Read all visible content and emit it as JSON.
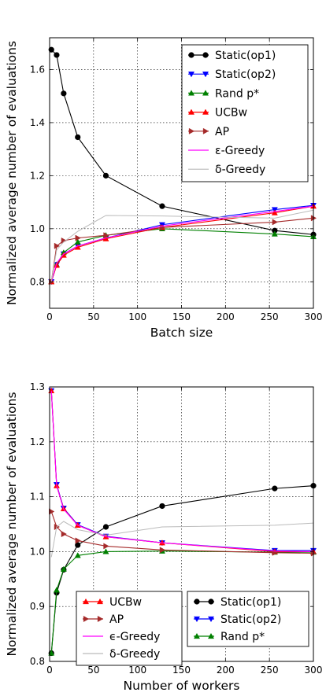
{
  "chart_data": [
    {
      "type": "line",
      "xlabel": "Batch size",
      "ylabel": "Normalized average number of evaluations",
      "xlim": [
        0,
        300
      ],
      "ylim": [
        0.7,
        1.72
      ],
      "xticks": [
        "0",
        "50",
        "100",
        "150",
        "200",
        "250",
        "300"
      ],
      "xtick_values": [
        0,
        50,
        100,
        150,
        200,
        250,
        300
      ],
      "yticks": [
        "0.8",
        "1.0",
        "1.2",
        "1.4",
        "1.6"
      ],
      "ytick_values": [
        0.8,
        1.0,
        1.2,
        1.4,
        1.6
      ],
      "grid": true,
      "legend": {
        "placement": "top-right",
        "columns": [
          [
            "Static(op1)",
            "Static(op2)",
            "Rand p*",
            "UCBw",
            "AP",
            "ε-Greedy",
            "δ-Greedy"
          ]
        ]
      },
      "series": [
        {
          "name": "Static(op1)",
          "color": "#000000",
          "marker": "circle",
          "x": [
            2,
            8,
            16,
            32,
            64,
            128,
            256,
            300
          ],
          "y": [
            1.675,
            1.655,
            1.51,
            1.345,
            1.2,
            1.085,
            0.993,
            0.978
          ]
        },
        {
          "name": "Static(op2)",
          "color": "#0000ff",
          "marker": "triangle-down",
          "x": [
            2,
            8,
            16,
            32,
            64,
            128,
            256,
            300
          ],
          "y": [
            0.8,
            0.865,
            0.905,
            0.935,
            0.965,
            1.015,
            1.072,
            1.088
          ]
        },
        {
          "name": "Rand p*",
          "color": "#008000",
          "marker": "triangle-up",
          "x": [
            2,
            8,
            16,
            32,
            64,
            128,
            256,
            300
          ],
          "y": [
            0.8,
            0.865,
            0.91,
            0.95,
            0.975,
            1.0,
            0.98,
            0.97
          ]
        },
        {
          "name": "UCBw",
          "color": "#ff0000",
          "marker": "triangle-up",
          "x": [
            2,
            8,
            16,
            32,
            64,
            128,
            256,
            300
          ],
          "y": [
            0.8,
            0.862,
            0.9,
            0.93,
            0.962,
            1.005,
            1.06,
            1.085
          ]
        },
        {
          "name": "AP",
          "color": "#a52a2a",
          "marker": "triangle-right",
          "x": [
            2,
            8,
            16,
            32,
            64,
            128,
            256,
            300
          ],
          "y": [
            0.8,
            0.935,
            0.955,
            0.965,
            0.975,
            1.005,
            1.025,
            1.04
          ]
        },
        {
          "name": "ε-Greedy",
          "color": "#ff00ff",
          "marker": "none",
          "x": [
            2,
            8,
            16,
            32,
            64,
            128,
            256,
            300
          ],
          "y": [
            0.8,
            0.87,
            0.905,
            0.935,
            0.965,
            1.01,
            1.065,
            1.085
          ]
        },
        {
          "name": "δ-Greedy",
          "color": "#bbbbbb",
          "marker": "none",
          "x": [
            2,
            8,
            16,
            32,
            64,
            128,
            256,
            300
          ],
          "y": [
            0.8,
            0.92,
            0.95,
            0.99,
            1.05,
            1.048,
            1.04,
            1.07
          ]
        }
      ]
    },
    {
      "type": "line",
      "xlabel": "Number of workers",
      "ylabel": "Normalized average number of evaluations",
      "xlim": [
        0,
        300
      ],
      "ylim": [
        0.8,
        1.3
      ],
      "xticks": [
        "0",
        "50",
        "100",
        "150",
        "200",
        "250",
        "300"
      ],
      "xtick_values": [
        0,
        50,
        100,
        150,
        200,
        250,
        300
      ],
      "yticks": [
        "0.8",
        "0.9",
        "1.0",
        "1.1",
        "1.2",
        "1.3"
      ],
      "ytick_values": [
        0.8,
        0.9,
        1.0,
        1.1,
        1.2,
        1.3
      ],
      "grid": true,
      "legend": {
        "placement": "bottom",
        "columns": [
          [
            "UCBw",
            "AP",
            "ϵ-Greedy",
            "δ-Greedy"
          ],
          [
            "Static(op1)",
            "Static(op2)",
            "Rand p*"
          ]
        ]
      },
      "series": [
        {
          "name": "Static(op1)",
          "color": "#000000",
          "marker": "circle",
          "x": [
            2,
            8,
            16,
            32,
            64,
            128,
            256,
            300
          ],
          "y": [
            0.815,
            0.925,
            0.967,
            1.012,
            1.045,
            1.083,
            1.115,
            1.12
          ]
        },
        {
          "name": "Static(op2)",
          "color": "#0000ff",
          "marker": "triangle-down",
          "x": [
            2,
            8,
            16,
            32,
            64,
            128,
            256,
            300
          ],
          "y": [
            1.293,
            1.122,
            1.079,
            1.049,
            1.028,
            1.016,
            1.002,
            1.002
          ]
        },
        {
          "name": "Rand p*",
          "color": "#008000",
          "marker": "triangle-up",
          "x": [
            2,
            8,
            16,
            32,
            64,
            128,
            256,
            300
          ],
          "y": [
            0.815,
            0.93,
            0.968,
            0.993,
            1.0,
            1.001,
            0.999,
            0.999
          ]
        },
        {
          "name": "UCBw",
          "color": "#ff0000",
          "marker": "triangle-up",
          "x": [
            2,
            8,
            16,
            32,
            64,
            128,
            256,
            300
          ],
          "y": [
            1.293,
            1.12,
            1.078,
            1.048,
            1.027,
            1.016,
            1.0,
            1.0
          ]
        },
        {
          "name": "AP",
          "color": "#a52a2a",
          "marker": "triangle-right",
          "x": [
            2,
            8,
            16,
            32,
            64,
            128,
            256,
            300
          ],
          "y": [
            1.073,
            1.045,
            1.032,
            1.02,
            1.01,
            1.003,
            0.998,
            0.997
          ]
        },
        {
          "name": "ϵ-Greedy",
          "color": "#ff00ff",
          "marker": "none",
          "x": [
            2,
            8,
            16,
            32,
            64,
            128,
            256,
            300
          ],
          "y": [
            1.293,
            1.12,
            1.077,
            1.048,
            1.027,
            1.016,
            1.001,
            1.0
          ]
        },
        {
          "name": "δ-Greedy",
          "color": "#bbbbbb",
          "marker": "none",
          "x": [
            2,
            8,
            16,
            32,
            64,
            128,
            256,
            300
          ],
          "y": [
            0.99,
            1.045,
            1.055,
            1.04,
            1.03,
            1.045,
            1.048,
            1.052
          ]
        }
      ]
    }
  ]
}
